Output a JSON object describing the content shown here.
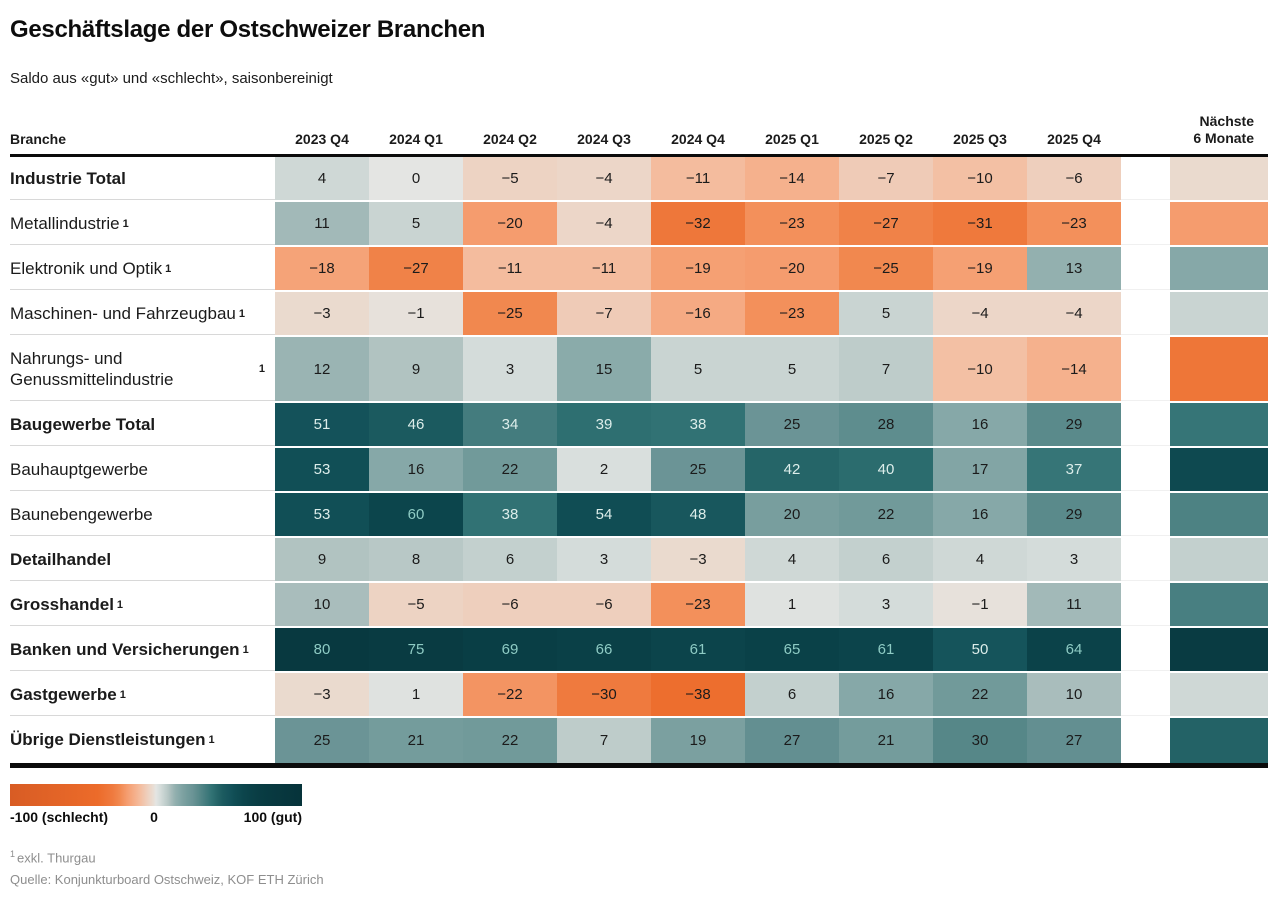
{
  "page": {
    "title": "Geschäftslage der Ostschweizer Branchen",
    "subtitle": "Saldo aus «gut» und «schlecht», saisonbereinigt",
    "footnote_marker": "1",
    "footnote_text": "exkl. Thurgau",
    "source": "Quelle: Konjunkturboard Ostschweiz, KOF ETH Zürich"
  },
  "table": {
    "row_header": "Branche",
    "next6_header": "Nächste\n6 Monate"
  },
  "chart_data": {
    "type": "heatmap",
    "title": "Geschäftslage der Ostschweizer Branchen",
    "subtitle": "Saldo aus «gut» und «schlecht», saisonbereinigt",
    "columns": [
      "2023 Q4",
      "2024 Q1",
      "2024 Q2",
      "2024 Q3",
      "2024 Q4",
      "2025 Q1",
      "2025 Q2",
      "2025 Q3",
      "2025 Q4"
    ],
    "extra_column": "Nächste 6 Monate",
    "extra_column_display": "color-only; no numbers printed, next6 values estimated from cell colors",
    "value_range": [
      -100,
      100
    ],
    "rows": [
      {
        "label": "Industrie Total",
        "bold": true,
        "footnote": false,
        "values": [
          4,
          0,
          -5,
          -4,
          -11,
          -14,
          -7,
          -10,
          -6
        ],
        "next6": -3
      },
      {
        "label": "Metallindustrie",
        "bold": false,
        "footnote": true,
        "values": [
          11,
          5,
          -20,
          -4,
          -32,
          -23,
          -27,
          -31,
          -23
        ],
        "next6": -20
      },
      {
        "label": "Elektronik und Optik",
        "bold": false,
        "footnote": true,
        "values": [
          -18,
          -27,
          -11,
          -11,
          -19,
          -20,
          -25,
          -19,
          13
        ],
        "next6": 16
      },
      {
        "label": "Maschinen- und Fahrzeugbau",
        "bold": false,
        "footnote": true,
        "values": [
          -3,
          -1,
          -25,
          -7,
          -16,
          -23,
          5,
          -4,
          -4
        ],
        "next6": 5
      },
      {
        "label": "Nahrungs- und Genussmittelindustrie",
        "bold": false,
        "footnote": true,
        "values": [
          12,
          9,
          3,
          15,
          5,
          5,
          7,
          -10,
          -14
        ],
        "next6": -33
      },
      {
        "label": "Baugewerbe Total",
        "bold": true,
        "footnote": false,
        "values": [
          51,
          46,
          34,
          39,
          38,
          25,
          28,
          16,
          29
        ],
        "next6": 37
      },
      {
        "label": "Bauhauptgewerbe",
        "bold": false,
        "footnote": false,
        "values": [
          53,
          16,
          22,
          2,
          25,
          42,
          40,
          17,
          37
        ],
        "next6": 57
      },
      {
        "label": "Baunebengewerbe",
        "bold": false,
        "footnote": false,
        "values": [
          53,
          60,
          38,
          54,
          48,
          20,
          22,
          16,
          29
        ],
        "next6": 32
      },
      {
        "label": "Detailhandel",
        "bold": true,
        "footnote": false,
        "values": [
          9,
          8,
          6,
          3,
          -3,
          4,
          6,
          4,
          3
        ],
        "next6": 6
      },
      {
        "label": "Grosshandel",
        "bold": true,
        "footnote": true,
        "values": [
          10,
          -5,
          -6,
          -6,
          -23,
          1,
          3,
          -1,
          11
        ],
        "next6": 33
      },
      {
        "label": "Banken und Versicherungen",
        "bold": true,
        "footnote": true,
        "values": [
          80,
          75,
          69,
          66,
          61,
          65,
          61,
          50,
          64
        ],
        "next6": 74
      },
      {
        "label": "Gastgewerbe",
        "bold": true,
        "footnote": true,
        "values": [
          -3,
          1,
          -22,
          -30,
          -38,
          6,
          16,
          22,
          10
        ],
        "next6": 4
      },
      {
        "label": "Übrige Dienstleistungen",
        "bold": true,
        "footnote": true,
        "values": [
          25,
          21,
          22,
          7,
          19,
          27,
          21,
          30,
          27
        ],
        "next6": 43
      }
    ],
    "legend": {
      "labels": [
        "-100 (schlecht)",
        "0",
        "100 (gut)"
      ]
    },
    "color_scale_stops": [
      [
        -100,
        "#d85c24"
      ],
      [
        -40,
        "#ec6b2a"
      ],
      [
        -30,
        "#ef7a3e"
      ],
      [
        -25,
        "#f1884f"
      ],
      [
        -20,
        "#f59c6e"
      ],
      [
        -14,
        "#f5b18d"
      ],
      [
        -10,
        "#f3c0a4"
      ],
      [
        -5,
        "#edd3c3"
      ],
      [
        -2,
        "#e9ddd3"
      ],
      [
        0,
        "#e4e5e3"
      ],
      [
        3,
        "#d4dcda"
      ],
      [
        5,
        "#c9d4d2"
      ],
      [
        8,
        "#b8c8c6"
      ],
      [
        10,
        "#a9bdbc"
      ],
      [
        13,
        "#93b0af"
      ],
      [
        16,
        "#86a8a8"
      ],
      [
        19,
        "#7ba0a0"
      ],
      [
        22,
        "#719a9a"
      ],
      [
        25,
        "#6b9496"
      ],
      [
        29,
        "#5a8a8b"
      ],
      [
        34,
        "#447c7e"
      ],
      [
        38,
        "#317274"
      ],
      [
        42,
        "#256568"
      ],
      [
        46,
        "#1b5a5f"
      ],
      [
        51,
        "#14525a"
      ],
      [
        54,
        "#104d54"
      ],
      [
        60,
        "#0c454c"
      ],
      [
        66,
        "#0a4047"
      ],
      [
        70,
        "#093d44"
      ],
      [
        80,
        "#083940"
      ],
      [
        100,
        "#06333a"
      ]
    ],
    "text_colors": {
      "dark": "#1b1b1b",
      "light": "#dcedea",
      "light_teal": "#8ecbc4"
    }
  }
}
